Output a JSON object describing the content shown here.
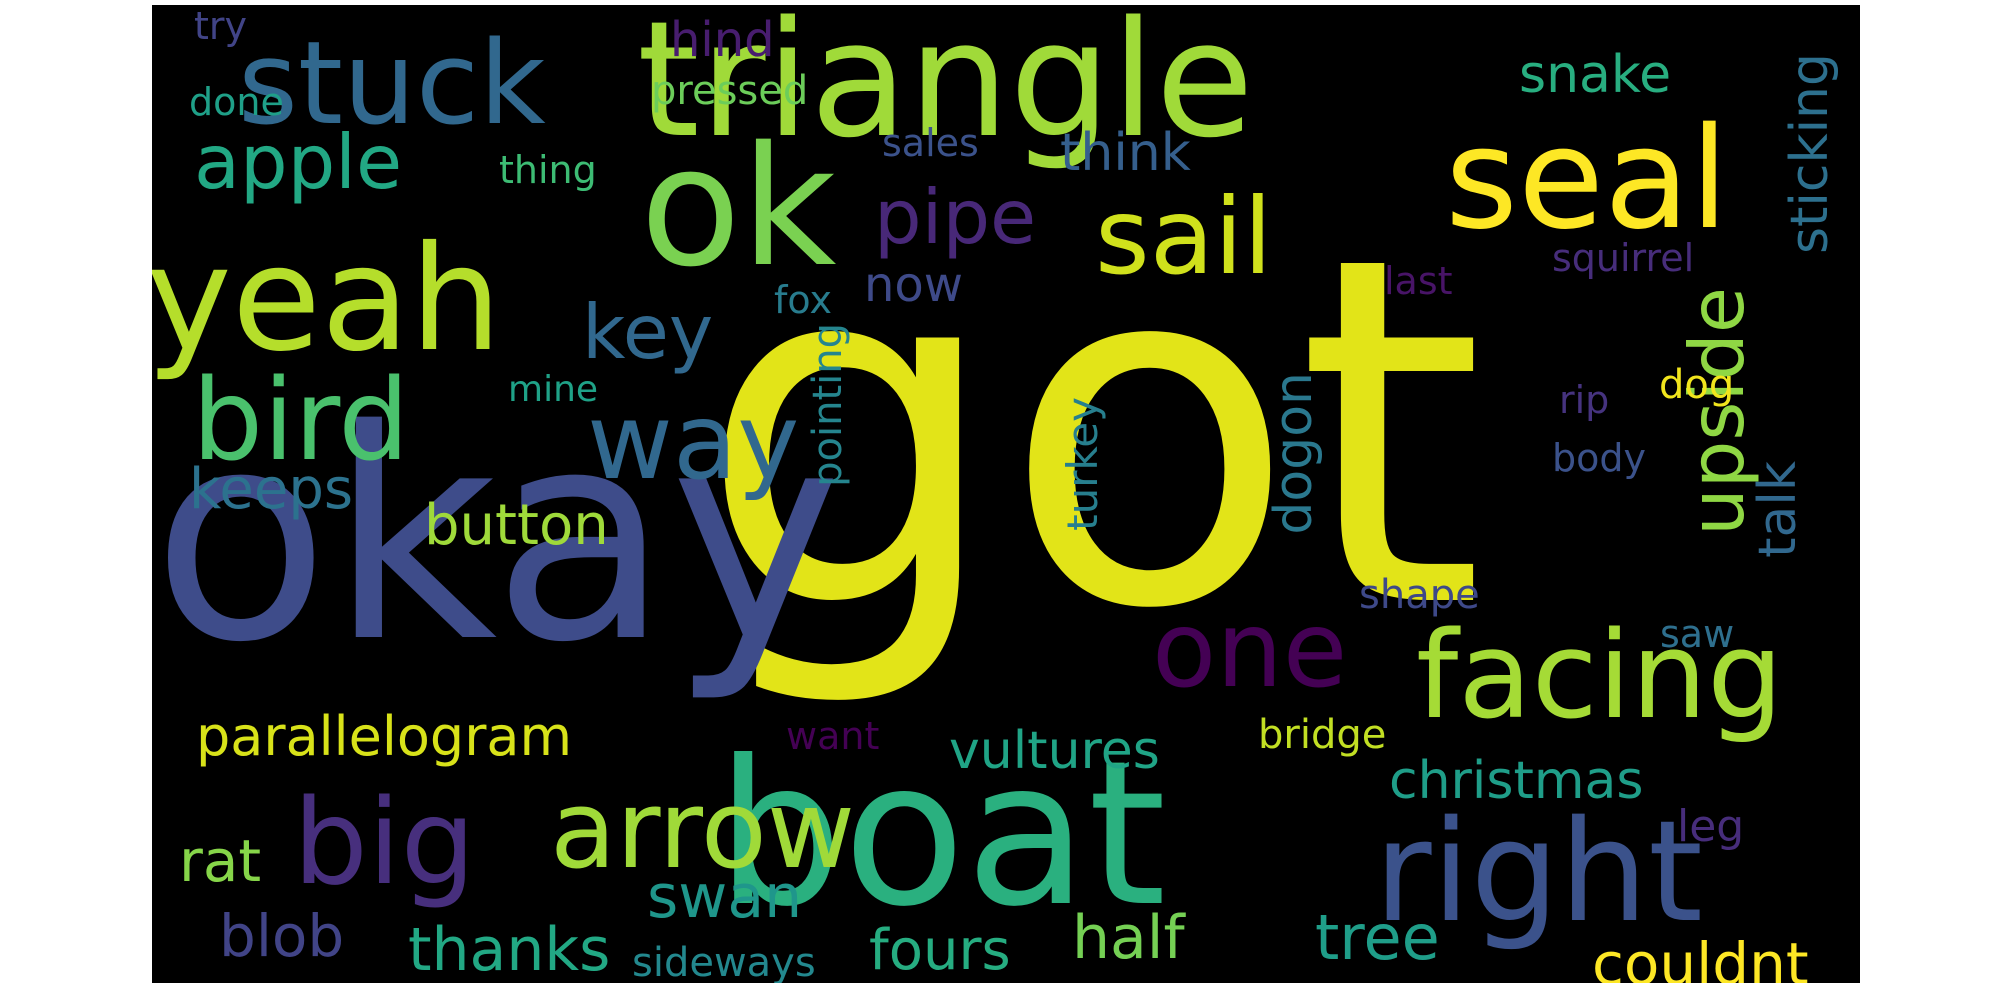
{
  "words": {
    "got": {
      "text": "got",
      "color": "#e2e418"
    },
    "okay": {
      "text": "okay",
      "color": "#3e4c8a"
    },
    "boat": {
      "text": "boat",
      "color": "#2ab07f"
    },
    "triangle": {
      "text": "triangle",
      "color": "#a0da39"
    },
    "ok": {
      "text": "ok",
      "color": "#7ad151"
    },
    "yeah": {
      "text": "yeah",
      "color": "#b5de2b"
    },
    "seal": {
      "text": "seal",
      "color": "#fde725"
    },
    "stuck": {
      "text": "stuck",
      "color": "#31688e"
    },
    "right": {
      "text": "right",
      "color": "#3b528b"
    },
    "facing": {
      "text": "facing",
      "color": "#a5db36"
    },
    "arrow": {
      "text": "arrow",
      "color": "#a0da39"
    },
    "big": {
      "text": "big",
      "color": "#472f7d"
    },
    "bird": {
      "text": "bird",
      "color": "#4ac16d"
    },
    "sail": {
      "text": "sail",
      "color": "#d0e11c"
    },
    "way": {
      "text": "way",
      "color": "#31688e"
    },
    "one": {
      "text": "one",
      "color": "#440154"
    },
    "apple": {
      "text": "apple",
      "color": "#22a884"
    },
    "pipe": {
      "text": "pipe",
      "color": "#482878"
    },
    "key": {
      "text": "key",
      "color": "#31688e"
    },
    "upside": {
      "text": "upside",
      "color": "#8fd744"
    },
    "parallelogram": {
      "text": "parallelogram",
      "color": "#d8e219"
    },
    "christmas": {
      "text": "christmas",
      "color": "#1f9e89"
    },
    "vultures": {
      "text": "vultures",
      "color": "#20a486"
    },
    "fours": {
      "text": "fours",
      "color": "#26ad81"
    },
    "half": {
      "text": "half",
      "color": "#75d054"
    },
    "thanks": {
      "text": "thanks",
      "color": "#22a884"
    },
    "tree": {
      "text": "tree",
      "color": "#1f9e89"
    },
    "couldnt": {
      "text": "couldnt",
      "color": "#fde725"
    },
    "swan": {
      "text": "swan",
      "color": "#1f968b"
    },
    "blob": {
      "text": "blob",
      "color": "#414487"
    },
    "rat": {
      "text": "rat",
      "color": "#86d549"
    },
    "keeps": {
      "text": "keeps",
      "color": "#2c728e"
    },
    "button": {
      "text": "button",
      "color": "#9fda3a"
    },
    "dogon": {
      "text": "dogon",
      "color": "#2a788e"
    },
    "turkey": {
      "text": "turkey",
      "color": "#277f8e"
    },
    "pointing": {
      "text": "pointing",
      "color": "#25858e"
    },
    "talk": {
      "text": "talk",
      "color": "#31688e"
    },
    "sticking": {
      "text": "sticking",
      "color": "#2d708e"
    },
    "snake": {
      "text": "snake",
      "color": "#28ae80"
    },
    "think": {
      "text": "think",
      "color": "#355f8d"
    },
    "hind": {
      "text": "hind",
      "color": "#481d6f"
    },
    "pressed": {
      "text": "pressed",
      "color": "#6ccd5a"
    },
    "done": {
      "text": "done",
      "color": "#1fa088"
    },
    "try": {
      "text": "try",
      "color": "#414487"
    },
    "thing": {
      "text": "thing",
      "color": "#3dbc74"
    },
    "sales": {
      "text": "sales",
      "color": "#3b528b"
    },
    "now": {
      "text": "now",
      "color": "#3e4a89"
    },
    "fox": {
      "text": "fox",
      "color": "#287c8e"
    },
    "mine": {
      "text": "mine",
      "color": "#1fa287"
    },
    "last": {
      "text": "last",
      "color": "#481467"
    },
    "squirrel": {
      "text": "squirrel",
      "color": "#472d7b"
    },
    "dog": {
      "text": "dog",
      "color": "#f1e51d"
    },
    "rip": {
      "text": "rip",
      "color": "#46337f"
    },
    "body": {
      "text": "body",
      "color": "#3b528b"
    },
    "shape": {
      "text": "shape",
      "color": "#3e4989"
    },
    "saw": {
      "text": "saw",
      "color": "#2e6f8e"
    },
    "want": {
      "text": "want",
      "color": "#440154"
    },
    "bridge": {
      "text": "bridge",
      "color": "#c2df23"
    },
    "leg": {
      "text": "leg",
      "color": "#472d7b"
    },
    "sideways": {
      "text": "sideways",
      "color": "#23888e"
    }
  }
}
